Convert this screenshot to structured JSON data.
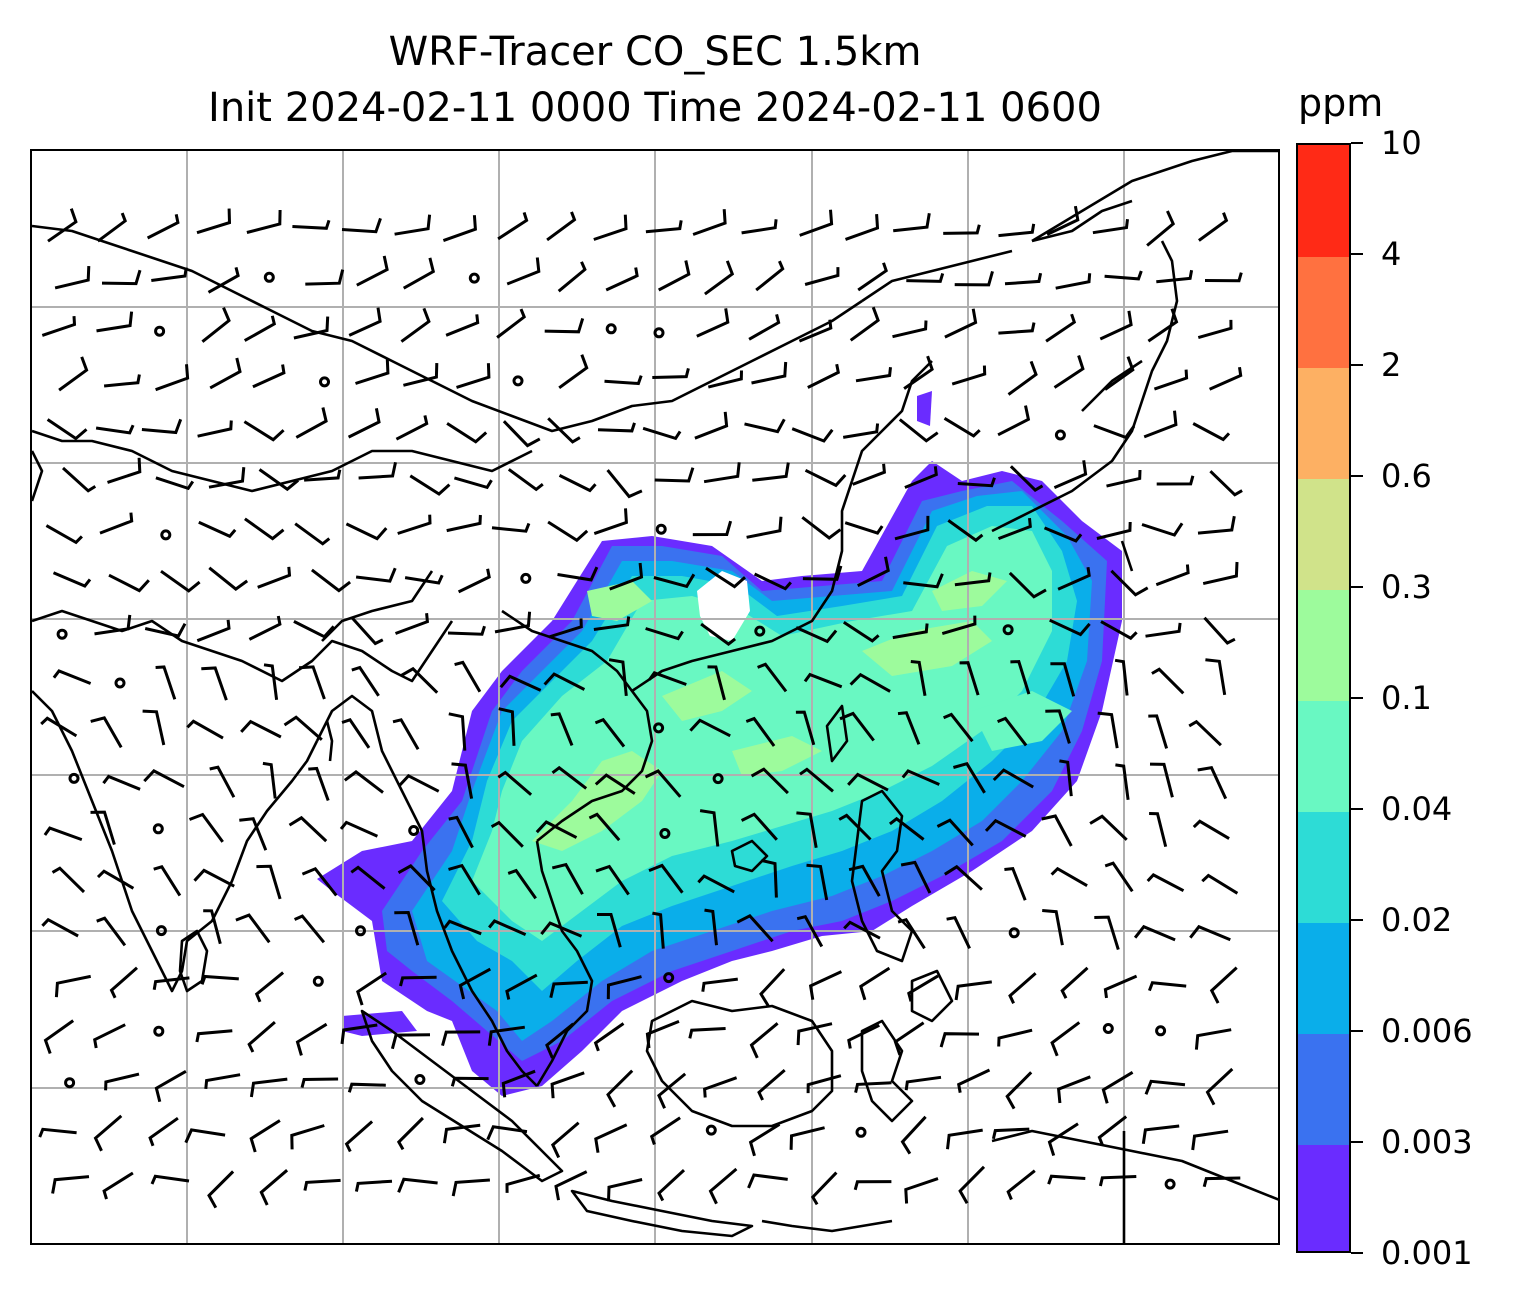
{
  "title": {
    "line1": "WRF-Tracer CO_SEC 1.5km",
    "line2": "Init 2024-02-11 0000 Time 2024-02-11 0600"
  },
  "colorbar": {
    "unit": "ppm",
    "levels": [
      "0.001",
      "0.003",
      "0.006",
      "0.02",
      "0.04",
      "0.1",
      "0.3",
      "0.6",
      "2",
      "4",
      "10"
    ],
    "colors": [
      "#6a2cff",
      "#3a72f0",
      "#0aaeea",
      "#2ddcd6",
      "#69f8c2",
      "#9dfb9c",
      "#d0e38a",
      "#fdb063",
      "#ff7140",
      "#ff2a16"
    ]
  },
  "map": {
    "gridline_color": "#b0b0b0",
    "coastline_color": "#000000",
    "barb_color": "#000000",
    "plume_layers": [
      {
        "level": "0.001",
        "color": "#6a2cff"
      },
      {
        "level": "0.003",
        "color": "#3a72f0"
      },
      {
        "level": "0.006",
        "color": "#0aaeea"
      },
      {
        "level": "0.02",
        "color": "#2ddcd6"
      },
      {
        "level": "0.04",
        "color": "#69f8c2"
      },
      {
        "level": "0.1",
        "color": "#9dfb9c"
      }
    ]
  }
}
